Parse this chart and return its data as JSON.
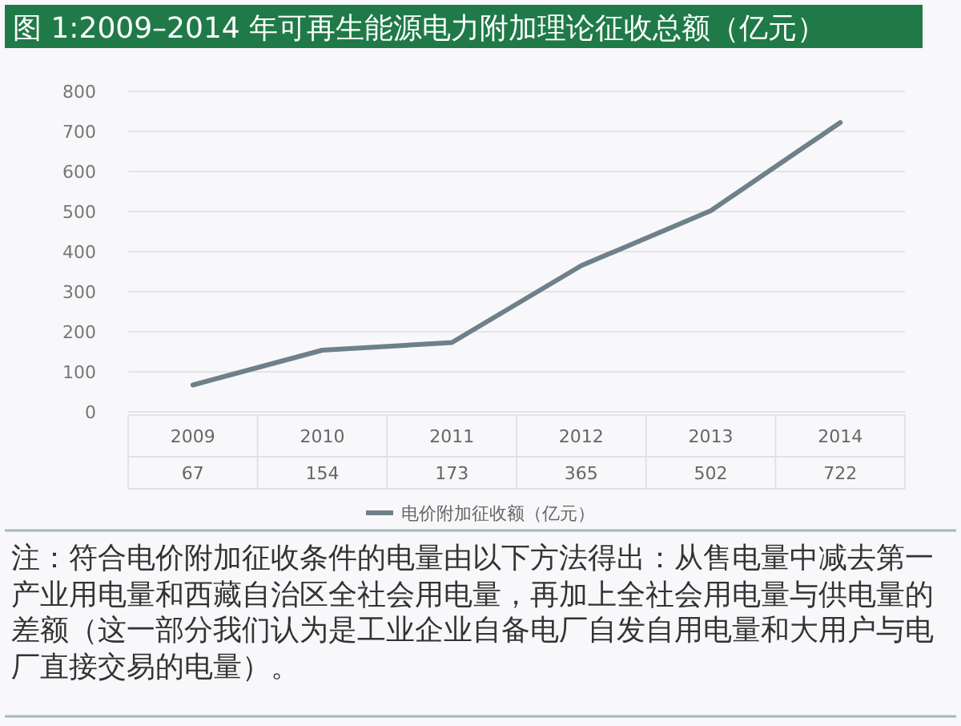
{
  "chart_data": {
    "type": "line",
    "title": "图 1:2009–2014 年可再生能源电力附加理论征收总额（亿元）",
    "categories": [
      "2009",
      "2010",
      "2011",
      "2012",
      "2013",
      "2014"
    ],
    "series": [
      {
        "name": "电价附加征收额（亿元）",
        "color": "#6e8089",
        "values": [
          67,
          154,
          173,
          365,
          502,
          722
        ]
      }
    ],
    "ylim": [
      0,
      800
    ],
    "yticks": [
      0,
      100,
      200,
      300,
      400,
      500,
      600,
      700,
      800
    ],
    "grid": "y",
    "data_labels": true,
    "legend": "bottom",
    "line_style": "solid",
    "annotations": [
      "注：符合电价附加征收条件的电量由以下方法得出：从售电量中减去第一产业用电量和西藏自治区全社会用电量，再加上全社会用电量与供电量的差额（这一部分我们认为是工业企业自备电厂自发自用电量和大用户与电厂直接交易的电量）。"
    ]
  }
}
